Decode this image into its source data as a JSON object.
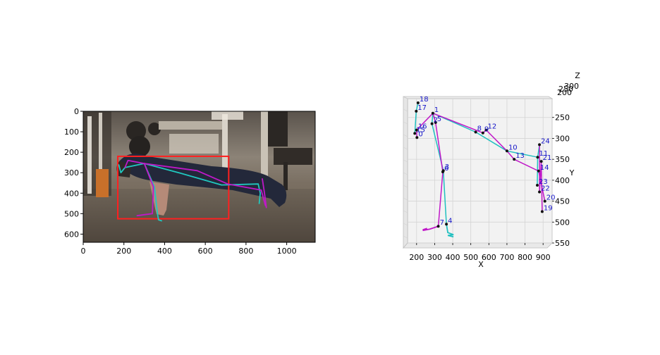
{
  "chart_data": [
    {
      "type": "image-overlay",
      "xlim": [
        0,
        1140
      ],
      "ylim": [
        640,
        0
      ],
      "x_ticks": [
        "0",
        "200",
        "400",
        "600",
        "800",
        "1000"
      ],
      "y_ticks": [
        "0",
        "100",
        "200",
        "300",
        "400",
        "500",
        "600"
      ],
      "bbox_color": "#ff2020",
      "bounding_box": {
        "x1": 170,
        "y1": 220,
        "x2": 715,
        "y2": 525
      },
      "skeleton_colors": {
        "left": "#20c8c0",
        "right": "#c018c8"
      },
      "skeleton_cyan": [
        [
          [
            205,
            275
          ],
          [
            185,
            300
          ],
          [
            175,
            262
          ]
        ],
        [
          [
            300,
            255
          ],
          [
            350,
            370
          ],
          [
            365,
            500
          ],
          [
            370,
            530
          ],
          [
            385,
            535
          ]
        ],
        [
          [
            300,
            255
          ],
          [
            470,
            300
          ],
          [
            680,
            360
          ],
          [
            860,
            355
          ],
          [
            870,
            400
          ],
          [
            865,
            450
          ]
        ],
        [
          [
            205,
            275
          ],
          [
            300,
            255
          ]
        ]
      ],
      "skeleton_magenta": [
        [
          [
            205,
            275
          ],
          [
            220,
            240
          ],
          [
            300,
            255
          ]
        ],
        [
          [
            300,
            255
          ],
          [
            345,
            370
          ],
          [
            340,
            500
          ],
          [
            300,
            505
          ],
          [
            265,
            510
          ]
        ],
        [
          [
            300,
            255
          ],
          [
            560,
            290
          ],
          [
            710,
            355
          ],
          [
            875,
            385
          ],
          [
            895,
            460
          ]
        ],
        [
          [
            880,
            330
          ],
          [
            890,
            395
          ],
          [
            900,
            470
          ]
        ]
      ]
    },
    {
      "type": "3d-scatter",
      "xlabel": "X",
      "ylabel": "Y",
      "zlabel": "Z",
      "x_ticks": [
        "200",
        "300",
        "400",
        "500",
        "600",
        "700",
        "800",
        "900"
      ],
      "y_ticks": [
        "250",
        "300",
        "350",
        "400",
        "450",
        "500",
        "550"
      ],
      "z_ticks": [
        "200",
        "250",
        "300"
      ],
      "xlim": [
        150,
        950
      ],
      "ylim": [
        205,
        550
      ],
      "points": [
        {
          "id": "1",
          "x": 290,
          "y": 240
        },
        {
          "id": "2",
          "x": 285,
          "y": 265
        },
        {
          "id": "5",
          "x": 305,
          "y": 262
        },
        {
          "id": "6",
          "x": 345,
          "y": 380
        },
        {
          "id": "3",
          "x": 348,
          "y": 377
        },
        {
          "id": "4",
          "x": 365,
          "y": 505
        },
        {
          "id": "7",
          "x": 320,
          "y": 510
        },
        {
          "id": "8",
          "x": 527,
          "y": 285
        },
        {
          "id": "9",
          "x": 567,
          "y": 287
        },
        {
          "id": "12",
          "x": 585,
          "y": 280
        },
        {
          "id": "10",
          "x": 700,
          "y": 330
        },
        {
          "id": "13",
          "x": 740,
          "y": 350
        },
        {
          "id": "11",
          "x": 870,
          "y": 345
        },
        {
          "id": "21",
          "x": 890,
          "y": 355
        },
        {
          "id": "24",
          "x": 880,
          "y": 315
        },
        {
          "id": "14",
          "x": 875,
          "y": 378
        },
        {
          "id": "23",
          "x": 868,
          "y": 412
        },
        {
          "id": "22",
          "x": 880,
          "y": 428
        },
        {
          "id": "20",
          "x": 910,
          "y": 450
        },
        {
          "id": "19",
          "x": 895,
          "y": 475
        },
        {
          "id": "18",
          "x": 208,
          "y": 215
        },
        {
          "id": "17",
          "x": 198,
          "y": 235
        },
        {
          "id": "16",
          "x": 200,
          "y": 280
        },
        {
          "id": "15",
          "x": 190,
          "y": 288
        },
        {
          "id": "0",
          "x": 202,
          "y": 298
        }
      ],
      "cyan_paths": [
        [
          "1",
          "2",
          "3",
          "4"
        ],
        [
          "1",
          "8",
          "10",
          "11",
          "23"
        ],
        [
          "18",
          "17",
          "15"
        ],
        [
          "24",
          "11"
        ]
      ],
      "magenta_paths": [
        [
          "1",
          "5",
          "6",
          "7"
        ],
        [
          "1",
          "9",
          "12",
          "10",
          "13",
          "14",
          "20"
        ],
        [
          "0",
          "16",
          "1"
        ],
        [
          "24",
          "22",
          "21",
          "19"
        ]
      ]
    }
  ]
}
